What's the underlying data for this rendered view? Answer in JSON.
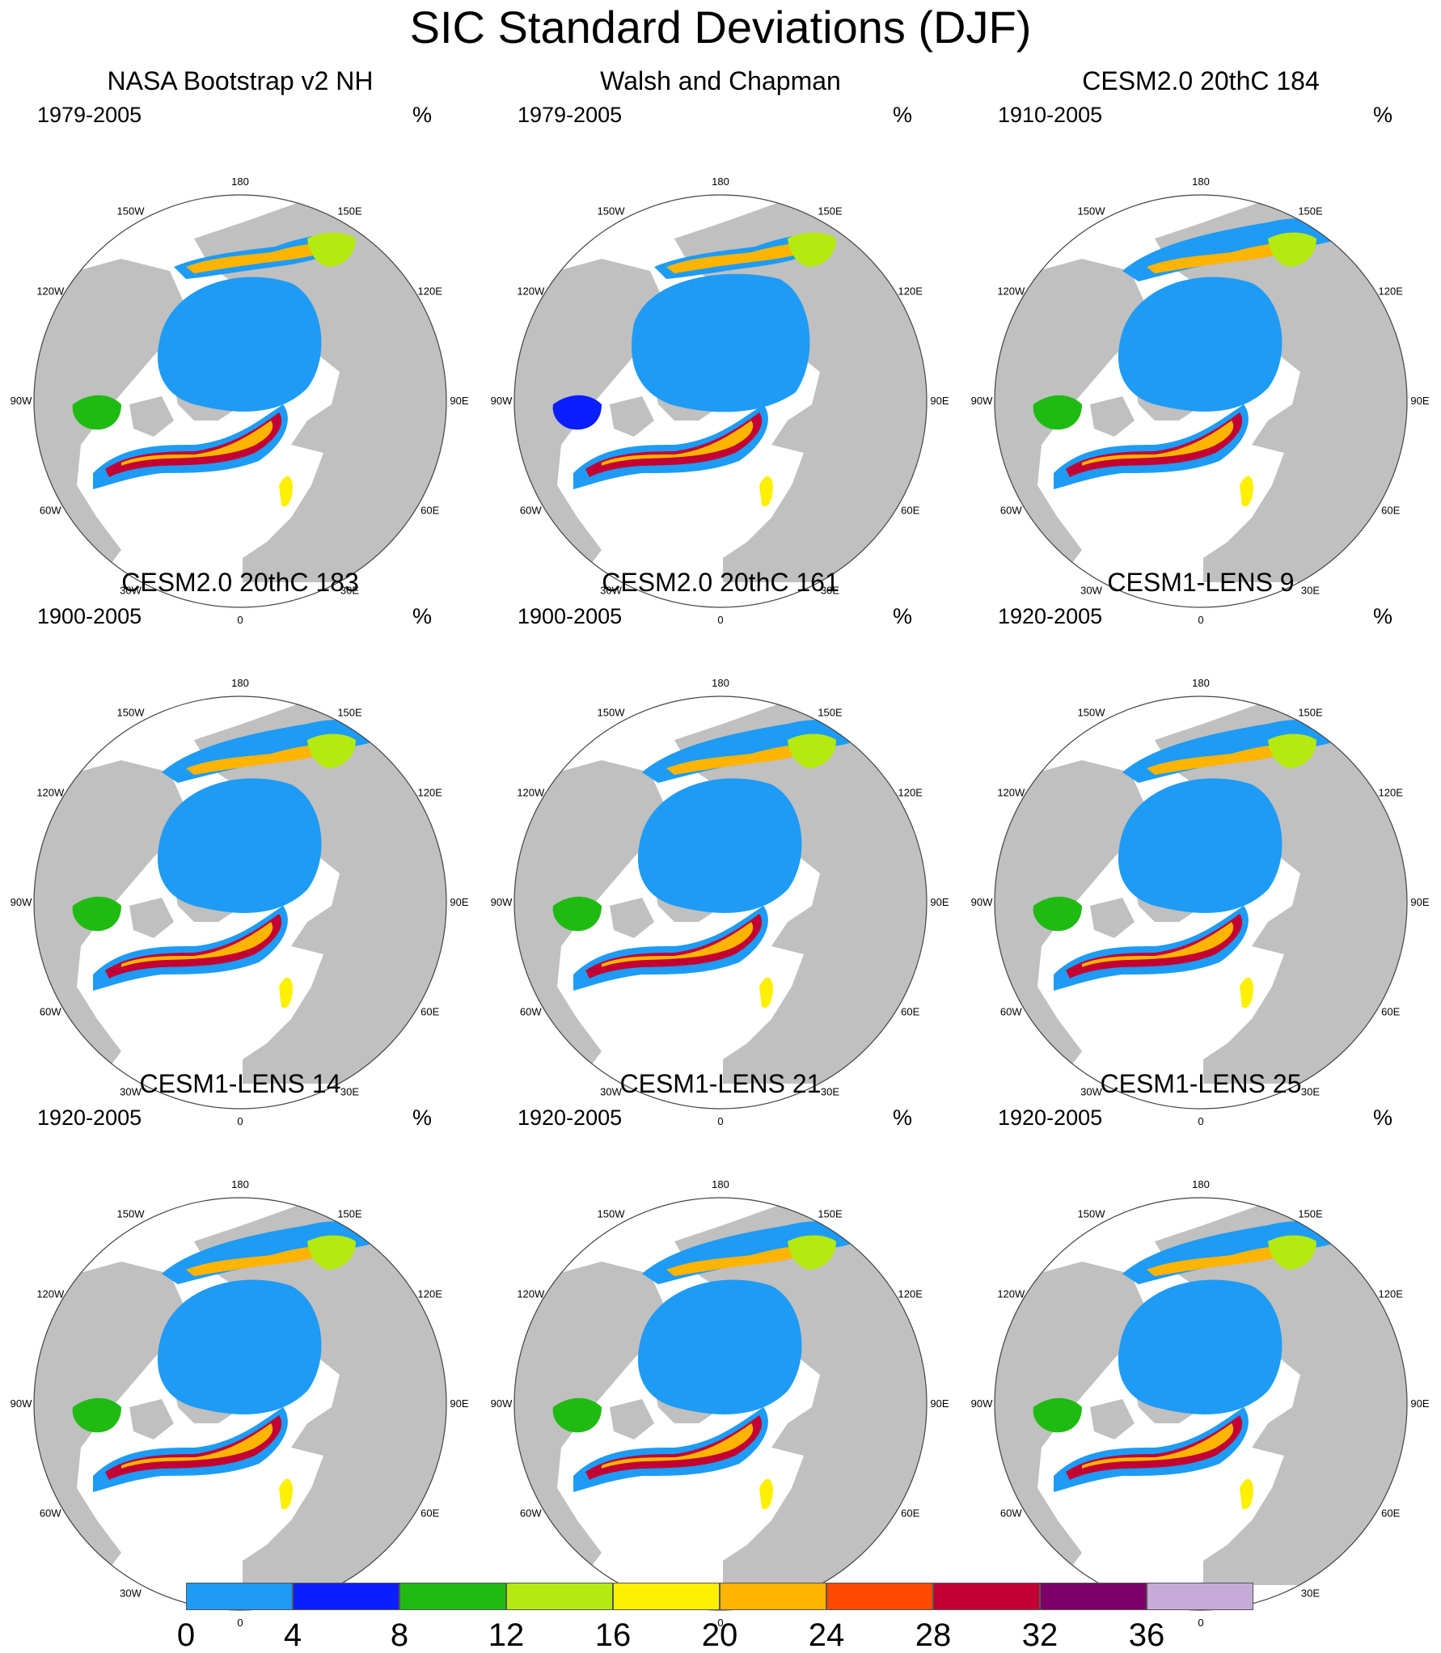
{
  "title": "SIC Standard Deviations (DJF)",
  "panels": [
    {
      "title": "NASA Bootstrap v2 NH",
      "years": "1979-2005",
      "units": "%"
    },
    {
      "title": "Walsh and Chapman",
      "years": "1979-2005",
      "units": "%"
    },
    {
      "title": "CESM2.0 20thC 184",
      "years": "1910-2005",
      "units": "%"
    },
    {
      "title": "CESM2.0 20thC 183",
      "years": "1900-2005",
      "units": "%"
    },
    {
      "title": "CESM2.0 20thC 161",
      "years": "1900-2005",
      "units": "%"
    },
    {
      "title": "CESM1-LENS 9",
      "years": "1920-2005",
      "units": "%"
    },
    {
      "title": "CESM1-LENS 14",
      "years": "1920-2005",
      "units": "%"
    },
    {
      "title": "CESM1-LENS 21",
      "years": "1920-2005",
      "units": "%"
    },
    {
      "title": "CESM1-LENS 25",
      "years": "1920-2005",
      "units": "%"
    }
  ],
  "longitude_labels": [
    "180",
    "150E",
    "120E",
    "90E",
    "60E",
    "30E",
    "0",
    "30W",
    "60W",
    "90W",
    "120W",
    "150W"
  ],
  "colorbar": {
    "ticks": [
      "0",
      "4",
      "8",
      "12",
      "16",
      "20",
      "24",
      "28",
      "32",
      "36"
    ],
    "colors": [
      "#1e9bf5",
      "#0a1eff",
      "#1fbb12",
      "#b4ea0f",
      "#ffef00",
      "#ffb400",
      "#ff4a00",
      "#c30033",
      "#7d0068",
      "#c8aad8"
    ]
  },
  "map_colors": {
    "land": "#c0c0c0",
    "open_ocean": "#ffffff",
    "low_variability_ice": "#1e9bf5"
  }
}
